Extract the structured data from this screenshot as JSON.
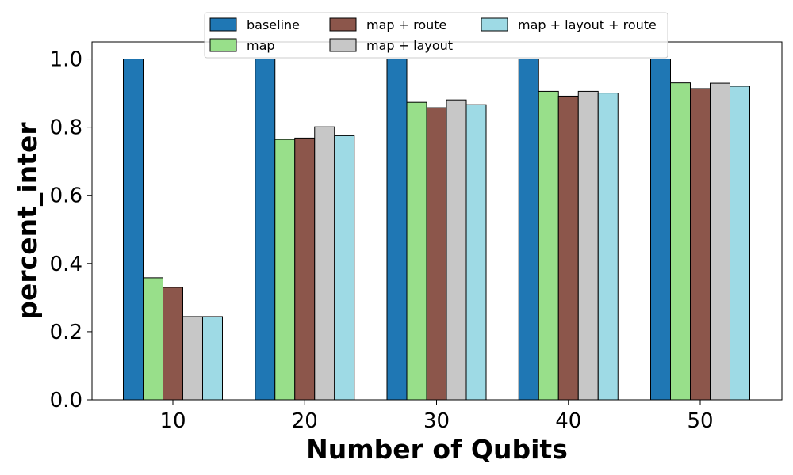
{
  "chart_data": {
    "type": "bar",
    "title": "",
    "xlabel": "Number of Qubits",
    "ylabel": "percent_inter",
    "categories": [
      "10",
      "20",
      "30",
      "40",
      "50"
    ],
    "ylim": [
      0,
      1.05
    ],
    "yticks": [
      "0.0",
      "0.2",
      "0.4",
      "0.6",
      "0.8",
      "1.0"
    ],
    "grid": false,
    "legend_position": "top-center",
    "series": [
      {
        "name": "baseline",
        "color": "#1f77b4",
        "values": [
          1.0,
          1.0,
          1.0,
          1.0,
          1.0
        ]
      },
      {
        "name": "map",
        "color": "#98df8a",
        "values": [
          0.358,
          0.764,
          0.873,
          0.905,
          0.93
        ]
      },
      {
        "name": "map + route",
        "color": "#8c564b",
        "values": [
          0.33,
          0.768,
          0.857,
          0.891,
          0.913
        ]
      },
      {
        "name": "map + layout",
        "color": "#c7c7c7",
        "values": [
          0.244,
          0.801,
          0.88,
          0.905,
          0.929
        ]
      },
      {
        "name": "map + layout + route",
        "color": "#9edae5",
        "values": [
          0.244,
          0.775,
          0.866,
          0.9,
          0.92
        ]
      }
    ]
  }
}
